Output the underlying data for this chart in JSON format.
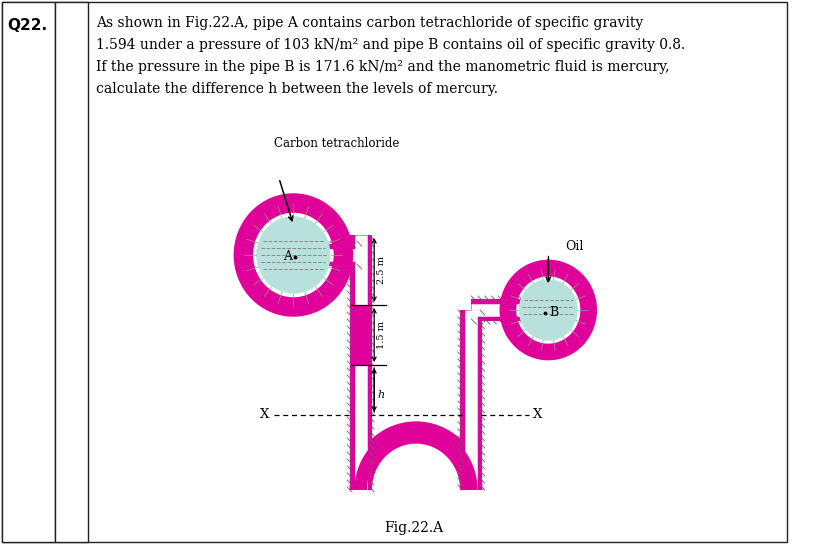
{
  "title_text": "Q22.",
  "problem_text_lines": [
    "As shown in Fig.22.A, pipe A contains carbon tetrachloride of specific gravity",
    "1.594 under a pressure of 103 kN/m² and pipe B contains oil of specific gravity 0.8.",
    "If the pressure in the pipe B is 171.6 kN/m² and the manometric fluid is mercury,",
    "calculate the difference h between the levels of mercury."
  ],
  "fig_label": "Fig.22.A",
  "label_carbon": "Carbon tetrachloride",
  "label_oil": "Oil",
  "label_A": "A",
  "label_B": "B",
  "label_x_left": "X",
  "label_x_right": "X",
  "label_25": "2.5 m",
  "label_15": "1.5 m",
  "label_h": "h",
  "pipe_color": "#E0009A",
  "circle_fill": "#B8E0DC",
  "circle_ring_color": "#E0009A",
  "bg_color": "#ffffff",
  "text_color": "#000000"
}
